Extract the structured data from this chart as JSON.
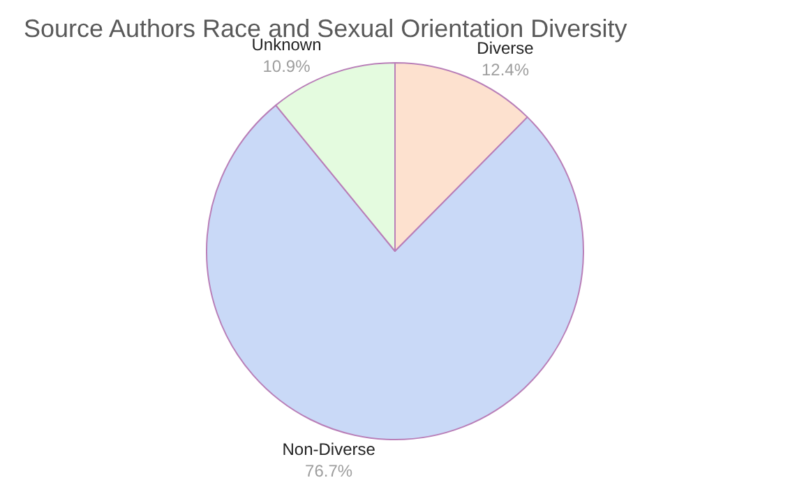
{
  "chart_data": {
    "type": "pie",
    "title": "Source Authors Race and Sexual Orientation Diversity",
    "categories": [
      "Diverse",
      "Non-Diverse",
      "Unknown"
    ],
    "values": [
      12.4,
      76.7,
      10.9
    ],
    "value_labels": [
      "12.4%",
      "76.7%",
      "10.9%"
    ],
    "colors": [
      "#fde1cf",
      "#c9d9f7",
      "#e4fbdf"
    ],
    "legend": false
  }
}
